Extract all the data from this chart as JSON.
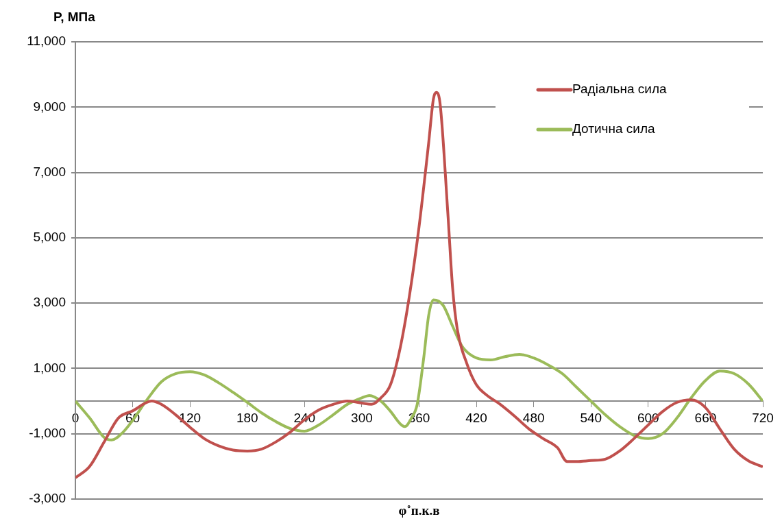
{
  "chart_data": {
    "type": "line",
    "ylabel": "P, МПа",
    "xlabel": "φ˚п.к.в",
    "xlim": [
      0,
      720
    ],
    "xticks": [
      0,
      60,
      120,
      180,
      240,
      300,
      360,
      420,
      480,
      540,
      600,
      660,
      720
    ],
    "ylim": [
      -3000,
      11000
    ],
    "yticks": [
      {
        "value": -3000,
        "label": "-3,000"
      },
      {
        "value": -1000,
        "label": "-1,000"
      },
      {
        "value": 1000,
        "label": "1,000"
      },
      {
        "value": 3000,
        "label": "3,000"
      },
      {
        "value": 5000,
        "label": "5,000"
      },
      {
        "value": 7000,
        "label": "7,000"
      },
      {
        "value": 9000,
        "label": "9,000"
      },
      {
        "value": 11000,
        "label": "11,000"
      }
    ],
    "grid": "y",
    "legend": "top right",
    "marker": "none",
    "line_style": "solid",
    "series": [
      {
        "name": "Радіальна сила",
        "color": "#c0504d",
        "x": [
          0,
          15,
          30,
          45,
          60,
          80,
          90,
          105,
          120,
          135,
          150,
          165,
          180,
          195,
          210,
          225,
          240,
          255,
          270,
          285,
          300,
          310,
          320,
          330,
          340,
          350,
          360,
          370,
          375,
          378,
          382,
          390,
          395,
          400,
          410,
          420,
          430,
          445,
          460,
          475,
          490,
          505,
          515,
          525,
          540,
          555,
          570,
          585,
          600,
          615,
          630,
          645,
          660,
          675,
          690,
          705,
          720
        ],
        "values": [
          -2350,
          -2000,
          -1260,
          -520,
          -300,
          0,
          -100,
          -420,
          -800,
          -1150,
          -1370,
          -1500,
          -1530,
          -1470,
          -1250,
          -950,
          -570,
          -270,
          -100,
          0,
          -60,
          -100,
          100,
          500,
          1600,
          3250,
          5350,
          7900,
          9250,
          9450,
          9100,
          5800,
          3500,
          2200,
          1150,
          500,
          200,
          -100,
          -460,
          -850,
          -1150,
          -1430,
          -1850,
          -1850,
          -1820,
          -1780,
          -1530,
          -1150,
          -730,
          -320,
          -40,
          40,
          -200,
          -850,
          -1470,
          -1830,
          -2010
        ]
      },
      {
        "name": "Дотична сила",
        "color": "#9bbb59",
        "x": [
          0,
          15,
          30,
          38,
          50,
          60,
          75,
          90,
          105,
          120,
          135,
          150,
          165,
          180,
          195,
          210,
          225,
          240,
          255,
          270,
          285,
          300,
          308,
          320,
          330,
          340,
          345,
          352,
          358,
          365,
          370,
          375,
          385,
          395,
          405,
          420,
          435,
          450,
          465,
          480,
          495,
          510,
          525,
          540,
          555,
          570,
          585,
          600,
          615,
          630,
          645,
          660,
          675,
          690,
          705,
          720
        ],
        "values": [
          0,
          -520,
          -1110,
          -1190,
          -950,
          -590,
          40,
          590,
          840,
          900,
          800,
          560,
          270,
          -40,
          -360,
          -630,
          -840,
          -920,
          -730,
          -420,
          -100,
          100,
          170,
          0,
          -310,
          -690,
          -780,
          -520,
          -100,
          1360,
          2620,
          3100,
          2940,
          2300,
          1680,
          1320,
          1260,
          1360,
          1430,
          1320,
          1110,
          840,
          420,
          0,
          -420,
          -780,
          -1050,
          -1150,
          -1000,
          -520,
          100,
          630,
          920,
          840,
          520,
          0
        ]
      }
    ]
  }
}
